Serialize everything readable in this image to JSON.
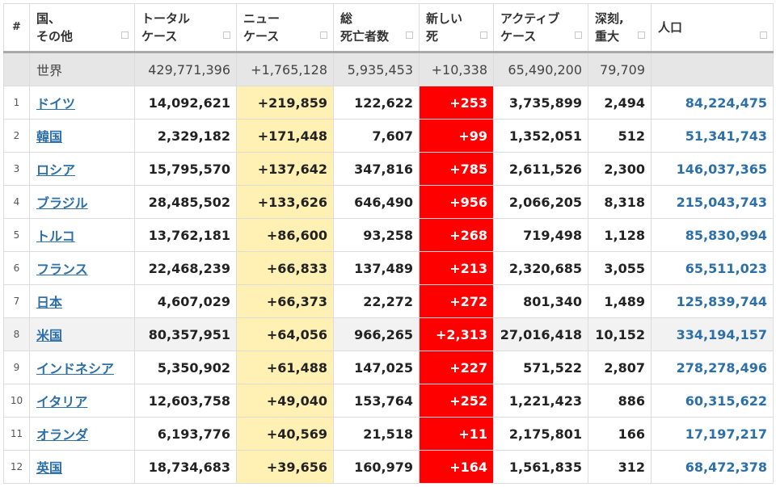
{
  "headers": [
    {
      "label": "#"
    },
    {
      "label": "国、\nその他"
    },
    {
      "label": "トータル\nケース"
    },
    {
      "label": "ニュー\nケース"
    },
    {
      "label": "総\n死亡者数"
    },
    {
      "label": "新しい\n死"
    },
    {
      "label": "アクティブ\nケース"
    },
    {
      "label": "深刻,\n重大"
    },
    {
      "label": "人口"
    }
  ],
  "world": {
    "country": "世界",
    "total_cases": "429,771,396",
    "new_cases": "+1,765,128",
    "total_deaths": "5,935,453",
    "new_deaths": "+10,338",
    "active_cases": "65,490,200",
    "critical": "79,709",
    "population": ""
  },
  "rows": [
    {
      "idx": "1",
      "country": "ドイツ",
      "total_cases": "14,092,621",
      "new_cases": "+219,859",
      "total_deaths": "122,622",
      "new_deaths": "+253",
      "active_cases": "3,735,899",
      "critical": "2,494",
      "population": "84,224,475"
    },
    {
      "idx": "2",
      "country": "韓国",
      "total_cases": "2,329,182",
      "new_cases": "+171,448",
      "total_deaths": "7,607",
      "new_deaths": "+99",
      "active_cases": "1,352,051",
      "critical": "512",
      "population": "51,341,743"
    },
    {
      "idx": "3",
      "country": "ロシア",
      "total_cases": "15,795,570",
      "new_cases": "+137,642",
      "total_deaths": "347,816",
      "new_deaths": "+785",
      "active_cases": "2,611,526",
      "critical": "2,300",
      "population": "146,037,365"
    },
    {
      "idx": "4",
      "country": "ブラジル",
      "total_cases": "28,485,502",
      "new_cases": "+133,626",
      "total_deaths": "646,490",
      "new_deaths": "+956",
      "active_cases": "2,066,205",
      "critical": "8,318",
      "population": "215,043,743"
    },
    {
      "idx": "5",
      "country": "トルコ",
      "total_cases": "13,762,181",
      "new_cases": "+86,600",
      "total_deaths": "93,258",
      "new_deaths": "+268",
      "active_cases": "719,498",
      "critical": "1,128",
      "population": "85,830,994"
    },
    {
      "idx": "6",
      "country": "フランス",
      "total_cases": "22,468,239",
      "new_cases": "+66,833",
      "total_deaths": "137,489",
      "new_deaths": "+213",
      "active_cases": "2,320,685",
      "critical": "3,055",
      "population": "65,511,023"
    },
    {
      "idx": "7",
      "country": "日本",
      "total_cases": "4,607,029",
      "new_cases": "+66,373",
      "total_deaths": "22,272",
      "new_deaths": "+272",
      "active_cases": "801,340",
      "critical": "1,489",
      "population": "125,839,744"
    },
    {
      "idx": "8",
      "country": "米国",
      "total_cases": "80,357,951",
      "new_cases": "+64,056",
      "total_deaths": "966,265",
      "new_deaths": "+2,313",
      "active_cases": "27,016,418",
      "critical": "10,152",
      "population": "334,194,157",
      "highlight": true
    },
    {
      "idx": "9",
      "country": "インドネシア",
      "total_cases": "5,350,902",
      "new_cases": "+61,488",
      "total_deaths": "147,025",
      "new_deaths": "+227",
      "active_cases": "571,522",
      "critical": "2,807",
      "population": "278,278,496"
    },
    {
      "idx": "10",
      "country": "イタリア",
      "total_cases": "12,603,758",
      "new_cases": "+49,040",
      "total_deaths": "153,764",
      "new_deaths": "+252",
      "active_cases": "1,221,423",
      "critical": "886",
      "population": "60,315,622"
    },
    {
      "idx": "11",
      "country": "オランダ",
      "total_cases": "6,193,776",
      "new_cases": "+40,569",
      "total_deaths": "21,518",
      "new_deaths": "+11",
      "active_cases": "2,175,801",
      "critical": "166",
      "population": "17,197,217"
    },
    {
      "idx": "12",
      "country": "英国",
      "total_cases": "18,734,683",
      "new_cases": "+39,656",
      "total_deaths": "160,979",
      "new_deaths": "+164",
      "active_cases": "1,561,835",
      "critical": "312",
      "population": "68,472,378"
    }
  ],
  "colors": {
    "new_cases_bg": "#fff0b3",
    "new_deaths_bg": "#ff0000",
    "link": "#2d6fa8",
    "world_row_bg": "#e6e6e6"
  }
}
